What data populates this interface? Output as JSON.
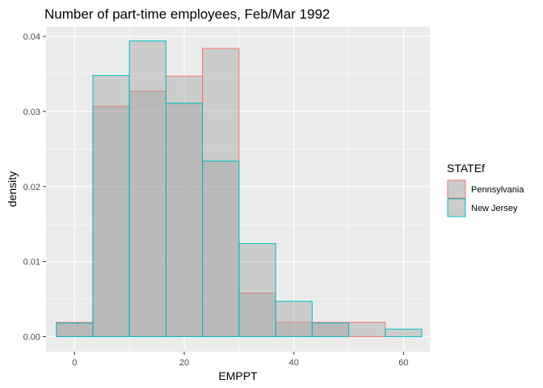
{
  "chart_data": {
    "type": "histogram",
    "title": "Number of part-time employees, Feb/Mar 1992",
    "xlabel": "EMPPT",
    "ylabel": "density",
    "xlim": [
      -5.2,
      64.8
    ],
    "ylim": [
      -0.002,
      0.0413
    ],
    "x_ticks": [
      0,
      20,
      40,
      60
    ],
    "y_ticks": [
      0.0,
      0.01,
      0.02,
      0.03,
      0.04
    ],
    "x_tick_labels": [
      "0",
      "20",
      "40",
      "60"
    ],
    "y_tick_labels": [
      "0.00",
      "0.01",
      "0.02",
      "0.03",
      "0.04"
    ],
    "bin_edges": [
      -3.33,
      3.33,
      10,
      16.67,
      23.33,
      30,
      36.67,
      43.33,
      50,
      56.67,
      63.33
    ],
    "legend_title": "STATEf",
    "legend_position": "right",
    "grid": true,
    "series": [
      {
        "name": "Pennsylvania",
        "color": "#F8766D",
        "values": [
          0.0019,
          0.0307,
          0.0327,
          0.0347,
          0.0384,
          0.0058,
          0.0019,
          0.0019,
          0.0019,
          0.0
        ]
      },
      {
        "name": "New Jersey",
        "color": "#00BFC4",
        "values": [
          0.0018,
          0.0348,
          0.0394,
          0.0311,
          0.0234,
          0.0124,
          0.0047,
          0.0018,
          0.0,
          0.001
        ]
      }
    ]
  },
  "colors": {
    "panel_background": "#EBEBEB",
    "grid_major": "#FFFFFF",
    "bar_fill": "#9E9E9E",
    "legend_key_fill": "#CCCCCC"
  }
}
